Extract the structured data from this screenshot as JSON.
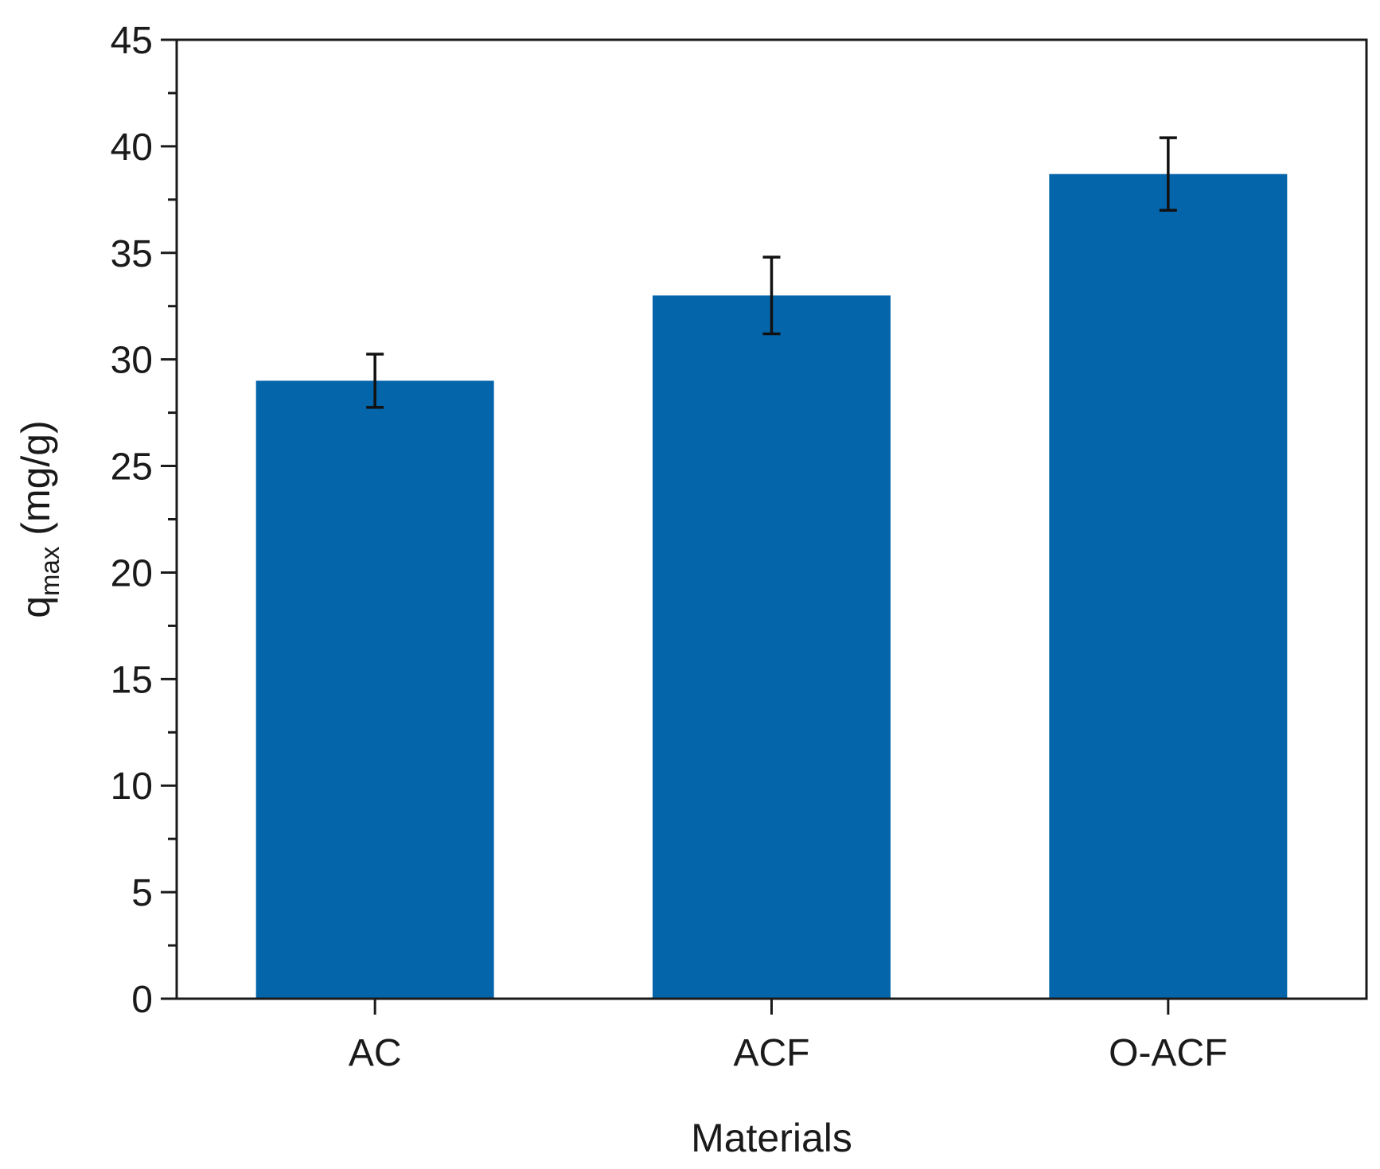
{
  "chart_data": {
    "type": "bar",
    "title": "",
    "categories": [
      "AC",
      "ACF",
      "O-ACF"
    ],
    "series": [
      {
        "values": [
          29.0,
          33.0,
          38.7
        ],
        "errors": [
          1.25,
          1.8,
          1.7
        ]
      }
    ],
    "xlabel": "Materials",
    "ylabel": {
      "main": "q",
      "subscript": "max",
      "unit": " (mg/g)"
    },
    "ylim": [
      0,
      45
    ],
    "yticks": [
      0,
      5,
      10,
      15,
      20,
      25,
      30,
      35,
      40,
      45
    ],
    "yticks_minor_step": 2.5,
    "grid": false,
    "legend": "none",
    "bar_color": "#0565AA",
    "error_bar_color": "#111111",
    "axis_color": "#1a1a1a"
  }
}
